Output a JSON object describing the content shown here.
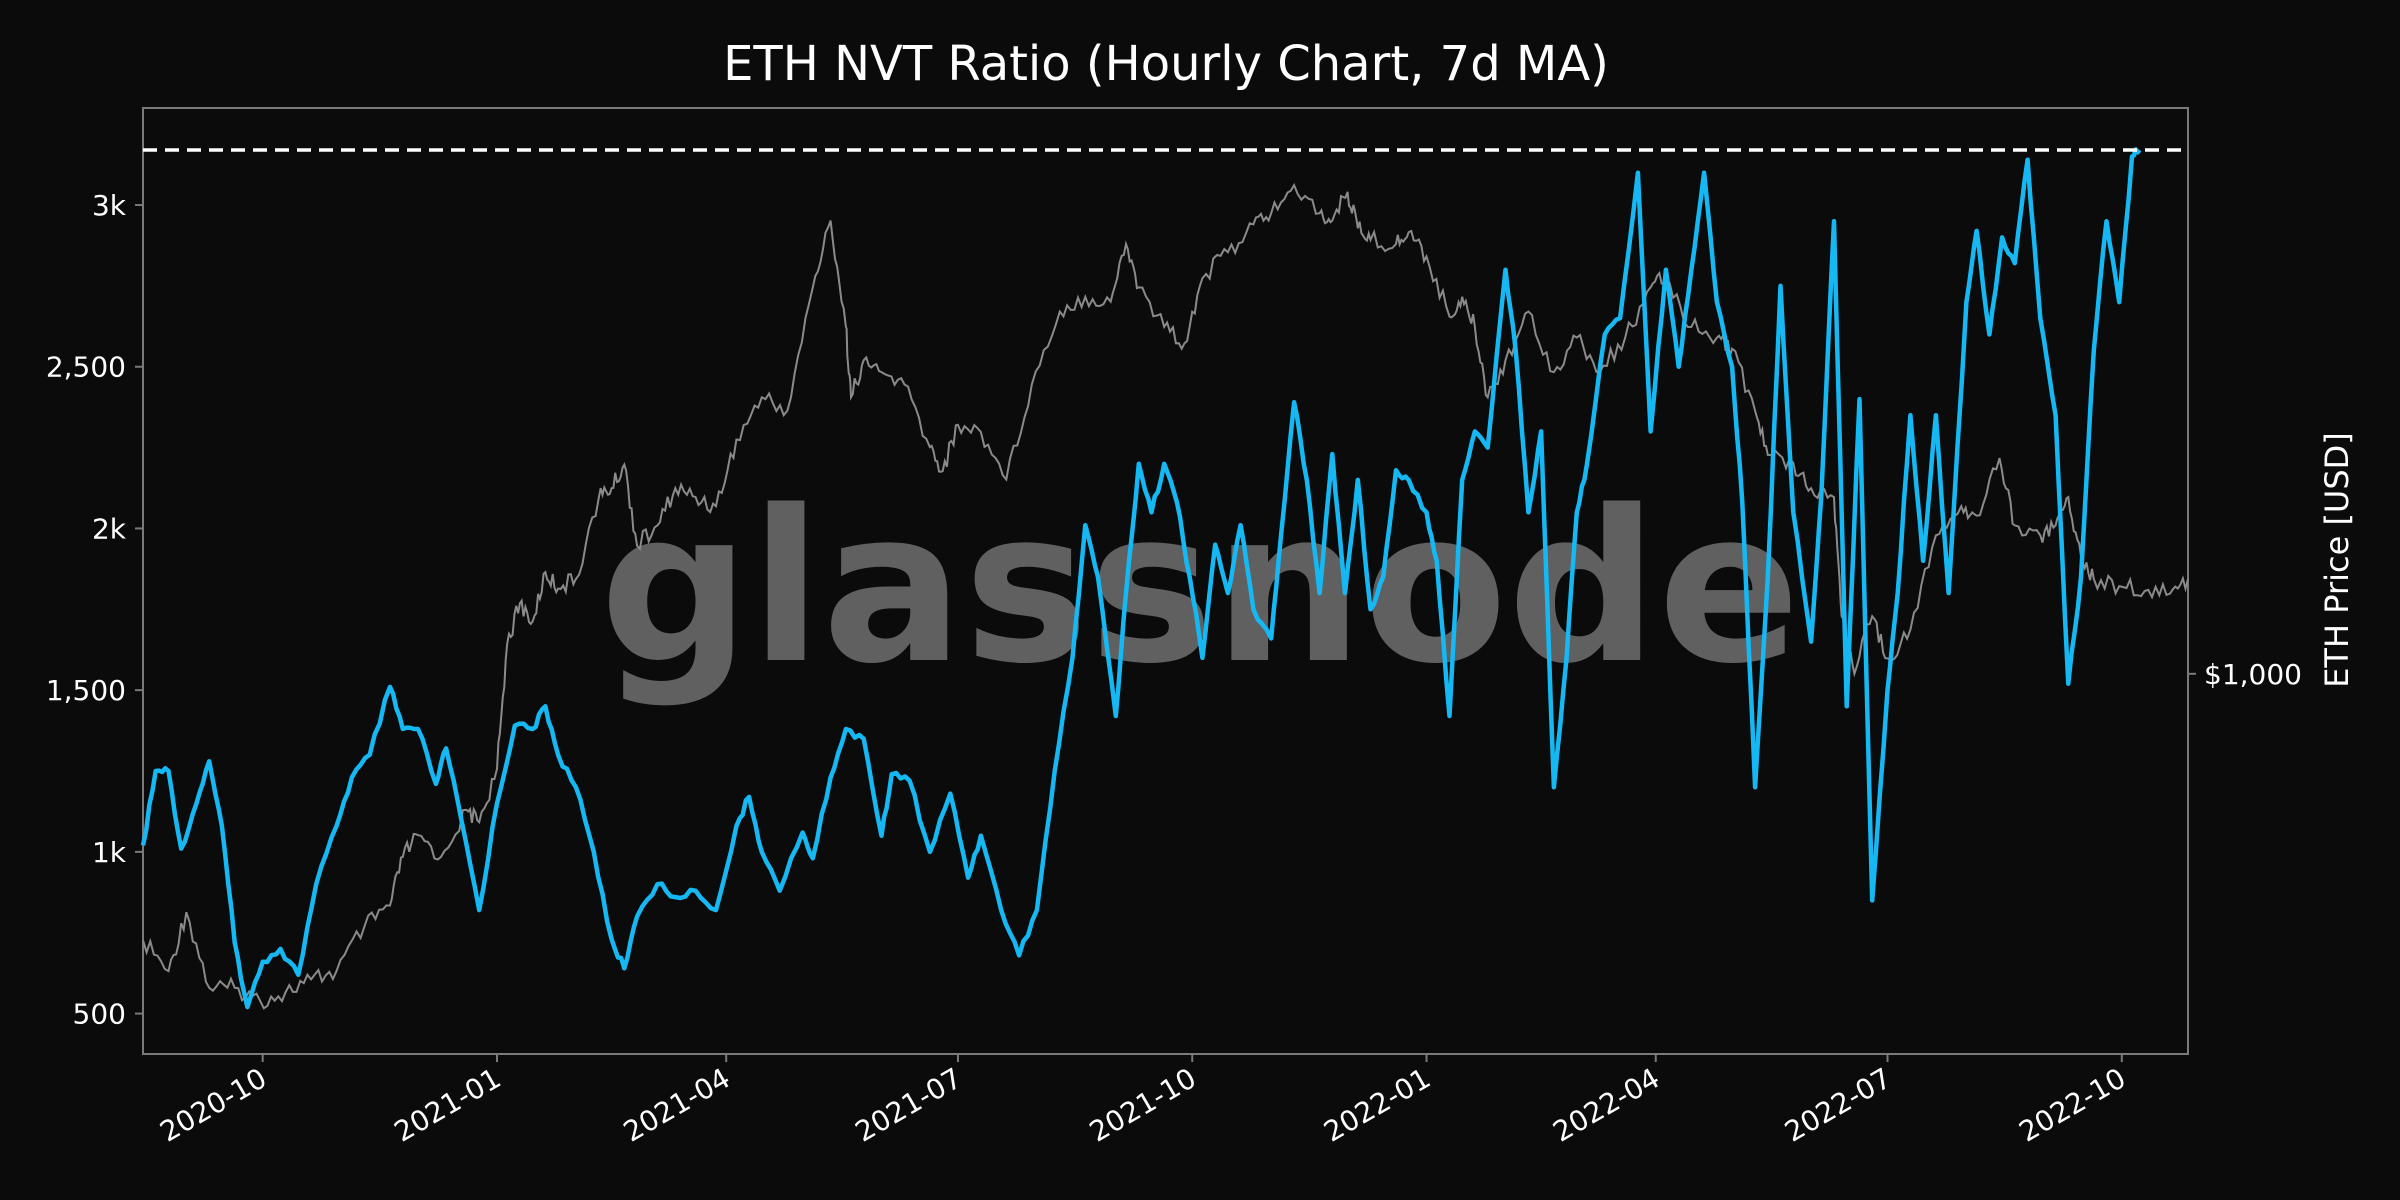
{
  "chart_data": {
    "type": "line",
    "title": "ETH NVT Ratio (Hourly Chart, 7d MA)",
    "watermark": "glassnode",
    "x_range": [
      "2020-08-15",
      "2022-10-27"
    ],
    "x_ticks": [
      "2020-10",
      "2021-01",
      "2021-04",
      "2021-07",
      "2021-10",
      "2022-01",
      "2022-04",
      "2022-07",
      "2022-10"
    ],
    "y_left": {
      "ticks": [
        500,
        1000,
        1500,
        2000,
        2500,
        3000
      ],
      "tick_labels": [
        "500",
        "1k",
        "1,500",
        "2k",
        "2,500",
        "3k"
      ],
      "range": [
        375,
        3300
      ]
    },
    "y_right": {
      "label": "ETH Price [USD]",
      "ticks": [
        1000
      ],
      "tick_labels": [
        "$1,000"
      ],
      "scale": "log",
      "range": [
        300,
        6000
      ]
    },
    "reference_line": {
      "axis": "left",
      "value": 3170,
      "style": "dashed",
      "color": "#ffffff"
    },
    "grid": false,
    "series": [
      {
        "axis": "left",
        "color": "#16b8f3",
        "points": [
          [
            "2020-08-15",
            1020
          ],
          [
            "2020-08-20",
            1250
          ],
          [
            "2020-08-25",
            1250
          ],
          [
            "2020-08-30",
            1010
          ],
          [
            "2020-09-05",
            1150
          ],
          [
            "2020-09-10",
            1280
          ],
          [
            "2020-09-15",
            1080
          ],
          [
            "2020-09-20",
            720
          ],
          [
            "2020-09-25",
            520
          ],
          [
            "2020-10-01",
            660
          ],
          [
            "2020-10-08",
            700
          ],
          [
            "2020-10-15",
            620
          ],
          [
            "2020-10-22",
            900
          ],
          [
            "2020-10-30",
            1080
          ],
          [
            "2020-11-05",
            1230
          ],
          [
            "2020-11-12",
            1300
          ],
          [
            "2020-11-20",
            1510
          ],
          [
            "2020-11-25",
            1380
          ],
          [
            "2020-12-01",
            1380
          ],
          [
            "2020-12-08",
            1210
          ],
          [
            "2020-12-12",
            1320
          ],
          [
            "2020-12-18",
            1100
          ],
          [
            "2020-12-25",
            820
          ],
          [
            "2021-01-01",
            1150
          ],
          [
            "2021-01-08",
            1390
          ],
          [
            "2021-01-15",
            1380
          ],
          [
            "2021-01-20",
            1450
          ],
          [
            "2021-01-25",
            1300
          ],
          [
            "2021-02-01",
            1200
          ],
          [
            "2021-02-08",
            1000
          ],
          [
            "2021-02-15",
            730
          ],
          [
            "2021-02-20",
            640
          ],
          [
            "2021-02-25",
            800
          ],
          [
            "2021-03-05",
            900
          ],
          [
            "2021-03-12",
            860
          ],
          [
            "2021-03-20",
            880
          ],
          [
            "2021-03-28",
            820
          ],
          [
            "2021-04-05",
            1080
          ],
          [
            "2021-04-10",
            1170
          ],
          [
            "2021-04-15",
            1000
          ],
          [
            "2021-04-22",
            880
          ],
          [
            "2021-05-01",
            1060
          ],
          [
            "2021-05-05",
            980
          ],
          [
            "2021-05-12",
            1230
          ],
          [
            "2021-05-18",
            1380
          ],
          [
            "2021-05-25",
            1350
          ],
          [
            "2021-06-01",
            1050
          ],
          [
            "2021-06-05",
            1240
          ],
          [
            "2021-06-12",
            1220
          ],
          [
            "2021-06-20",
            1000
          ],
          [
            "2021-06-28",
            1180
          ],
          [
            "2021-07-05",
            920
          ],
          [
            "2021-07-10",
            1050
          ],
          [
            "2021-07-18",
            820
          ],
          [
            "2021-07-25",
            680
          ],
          [
            "2021-08-01",
            820
          ],
          [
            "2021-08-08",
            1250
          ],
          [
            "2021-08-15",
            1600
          ],
          [
            "2021-08-20",
            2010
          ],
          [
            "2021-08-25",
            1850
          ],
          [
            "2021-09-01",
            1420
          ],
          [
            "2021-09-05",
            1800
          ],
          [
            "2021-09-10",
            2200
          ],
          [
            "2021-09-15",
            2050
          ],
          [
            "2021-09-20",
            2200
          ],
          [
            "2021-09-25",
            2080
          ],
          [
            "2021-09-30",
            1850
          ],
          [
            "2021-10-05",
            1600
          ],
          [
            "2021-10-10",
            1950
          ],
          [
            "2021-10-15",
            1800
          ],
          [
            "2021-10-20",
            2010
          ],
          [
            "2021-10-25",
            1750
          ],
          [
            "2021-11-01",
            1660
          ],
          [
            "2021-11-05",
            1990
          ],
          [
            "2021-11-10",
            2390
          ],
          [
            "2021-11-15",
            2150
          ],
          [
            "2021-11-20",
            1800
          ],
          [
            "2021-11-25",
            2230
          ],
          [
            "2021-11-30",
            1800
          ],
          [
            "2021-12-05",
            2150
          ],
          [
            "2021-12-10",
            1750
          ],
          [
            "2021-12-15",
            1850
          ],
          [
            "2021-12-20",
            2180
          ],
          [
            "2021-12-25",
            2150
          ],
          [
            "2022-01-01",
            2050
          ],
          [
            "2022-01-05",
            1900
          ],
          [
            "2022-01-10",
            1420
          ],
          [
            "2022-01-15",
            2150
          ],
          [
            "2022-01-20",
            2300
          ],
          [
            "2022-01-25",
            2250
          ],
          [
            "2022-02-01",
            2800
          ],
          [
            "2022-02-05",
            2550
          ],
          [
            "2022-02-10",
            2050
          ],
          [
            "2022-02-15",
            2300
          ],
          [
            "2022-02-20",
            1200
          ],
          [
            "2022-02-25",
            1600
          ],
          [
            "2022-03-01",
            2050
          ],
          [
            "2022-03-05",
            2200
          ],
          [
            "2022-03-12",
            2600
          ],
          [
            "2022-03-18",
            2650
          ],
          [
            "2022-03-25",
            3100
          ],
          [
            "2022-03-30",
            2300
          ],
          [
            "2022-04-05",
            2800
          ],
          [
            "2022-04-10",
            2500
          ],
          [
            "2022-04-15",
            2800
          ],
          [
            "2022-04-20",
            3100
          ],
          [
            "2022-04-25",
            2700
          ],
          [
            "2022-05-01",
            2500
          ],
          [
            "2022-05-05",
            2080
          ],
          [
            "2022-05-10",
            1200
          ],
          [
            "2022-05-15",
            1850
          ],
          [
            "2022-05-20",
            2750
          ],
          [
            "2022-05-25",
            2050
          ],
          [
            "2022-06-01",
            1650
          ],
          [
            "2022-06-05",
            2100
          ],
          [
            "2022-06-10",
            2950
          ],
          [
            "2022-06-15",
            1450
          ],
          [
            "2022-06-20",
            2400
          ],
          [
            "2022-06-25",
            850
          ],
          [
            "2022-07-01",
            1500
          ],
          [
            "2022-07-05",
            1800
          ],
          [
            "2022-07-10",
            2350
          ],
          [
            "2022-07-15",
            1900
          ],
          [
            "2022-07-20",
            2350
          ],
          [
            "2022-07-25",
            1800
          ],
          [
            "2022-08-01",
            2700
          ],
          [
            "2022-08-05",
            2920
          ],
          [
            "2022-08-10",
            2600
          ],
          [
            "2022-08-15",
            2900
          ],
          [
            "2022-08-20",
            2820
          ],
          [
            "2022-08-25",
            3140
          ],
          [
            "2022-08-30",
            2650
          ],
          [
            "2022-09-05",
            2350
          ],
          [
            "2022-09-10",
            1520
          ],
          [
            "2022-09-15",
            1850
          ],
          [
            "2022-09-20",
            2550
          ],
          [
            "2022-09-25",
            2950
          ],
          [
            "2022-09-30",
            2700
          ],
          [
            "2022-10-05",
            3150
          ],
          [
            "2022-10-08",
            3170
          ]
        ]
      },
      {
        "axis": "right",
        "color": "#8a8a8a",
        "points": [
          [
            "2020-08-15",
            430
          ],
          [
            "2020-08-25",
            390
          ],
          [
            "2020-09-01",
            470
          ],
          [
            "2020-09-10",
            370
          ],
          [
            "2020-09-20",
            370
          ],
          [
            "2020-09-30",
            355
          ],
          [
            "2020-10-10",
            365
          ],
          [
            "2020-10-20",
            380
          ],
          [
            "2020-10-30",
            390
          ],
          [
            "2020-11-10",
            450
          ],
          [
            "2020-11-20",
            480
          ],
          [
            "2020-11-25",
            560
          ],
          [
            "2020-12-01",
            600
          ],
          [
            "2020-12-10",
            560
          ],
          [
            "2020-12-20",
            650
          ],
          [
            "2020-12-25",
            625
          ],
          [
            "2021-01-01",
            740
          ],
          [
            "2021-01-05",
            1100
          ],
          [
            "2021-01-10",
            1250
          ],
          [
            "2021-01-15",
            1180
          ],
          [
            "2021-01-20",
            1380
          ],
          [
            "2021-01-25",
            1310
          ],
          [
            "2021-02-01",
            1350
          ],
          [
            "2021-02-10",
            1750
          ],
          [
            "2021-02-15",
            1800
          ],
          [
            "2021-02-20",
            1940
          ],
          [
            "2021-02-25",
            1500
          ],
          [
            "2021-03-05",
            1600
          ],
          [
            "2021-03-12",
            1800
          ],
          [
            "2021-03-20",
            1750
          ],
          [
            "2021-03-28",
            1700
          ],
          [
            "2021-04-05",
            2100
          ],
          [
            "2021-04-15",
            2400
          ],
          [
            "2021-04-25",
            2300
          ],
          [
            "2021-05-05",
            3400
          ],
          [
            "2021-05-12",
            4200
          ],
          [
            "2021-05-18",
            3000
          ],
          [
            "2021-05-20",
            2400
          ],
          [
            "2021-05-25",
            2700
          ],
          [
            "2021-06-01",
            2600
          ],
          [
            "2021-06-10",
            2500
          ],
          [
            "2021-06-20",
            2050
          ],
          [
            "2021-06-25",
            1900
          ],
          [
            "2021-07-01",
            2200
          ],
          [
            "2021-07-10",
            2150
          ],
          [
            "2021-07-20",
            1850
          ],
          [
            "2021-07-30",
            2500
          ],
          [
            "2021-08-10",
            3150
          ],
          [
            "2021-08-20",
            3300
          ],
          [
            "2021-08-30",
            3250
          ],
          [
            "2021-09-05",
            3900
          ],
          [
            "2021-09-10",
            3400
          ],
          [
            "2021-09-20",
            3000
          ],
          [
            "2021-09-28",
            2850
          ],
          [
            "2021-10-05",
            3500
          ],
          [
            "2021-10-15",
            3800
          ],
          [
            "2021-10-25",
            4150
          ],
          [
            "2021-11-01",
            4300
          ],
          [
            "2021-11-10",
            4700
          ],
          [
            "2021-11-20",
            4300
          ],
          [
            "2021-11-25",
            4200
          ],
          [
            "2021-12-01",
            4600
          ],
          [
            "2021-12-05",
            4100
          ],
          [
            "2021-12-10",
            3950
          ],
          [
            "2021-12-20",
            3900
          ],
          [
            "2021-12-25",
            4050
          ],
          [
            "2022-01-01",
            3750
          ],
          [
            "2022-01-10",
            3100
          ],
          [
            "2022-01-15",
            3300
          ],
          [
            "2022-01-20",
            3000
          ],
          [
            "2022-01-25",
            2400
          ],
          [
            "2022-02-01",
            2700
          ],
          [
            "2022-02-10",
            3150
          ],
          [
            "2022-02-20",
            2600
          ],
          [
            "2022-03-01",
            2900
          ],
          [
            "2022-03-10",
            2600
          ],
          [
            "2022-03-20",
            2900
          ],
          [
            "2022-03-30",
            3400
          ],
          [
            "2022-04-05",
            3500
          ],
          [
            "2022-04-15",
            3000
          ],
          [
            "2022-04-25",
            2900
          ],
          [
            "2022-05-01",
            2800
          ],
          [
            "2022-05-10",
            2300
          ],
          [
            "2022-05-15",
            2000
          ],
          [
            "2022-05-25",
            1950
          ],
          [
            "2022-06-01",
            1800
          ],
          [
            "2022-06-10",
            1750
          ],
          [
            "2022-06-13",
            1200
          ],
          [
            "2022-06-18",
            1000
          ],
          [
            "2022-06-25",
            1200
          ],
          [
            "2022-07-01",
            1050
          ],
          [
            "2022-07-10",
            1150
          ],
          [
            "2022-07-20",
            1550
          ],
          [
            "2022-07-30",
            1700
          ],
          [
            "2022-08-05",
            1650
          ],
          [
            "2022-08-14",
            1980
          ],
          [
            "2022-08-20",
            1600
          ],
          [
            "2022-08-30",
            1550
          ],
          [
            "2022-09-05",
            1600
          ],
          [
            "2022-09-10",
            1750
          ],
          [
            "2022-09-15",
            1450
          ],
          [
            "2022-09-20",
            1350
          ],
          [
            "2022-09-30",
            1320
          ],
          [
            "2022-10-10",
            1300
          ],
          [
            "2022-10-20",
            1290
          ],
          [
            "2022-10-27",
            1350
          ]
        ]
      }
    ]
  }
}
